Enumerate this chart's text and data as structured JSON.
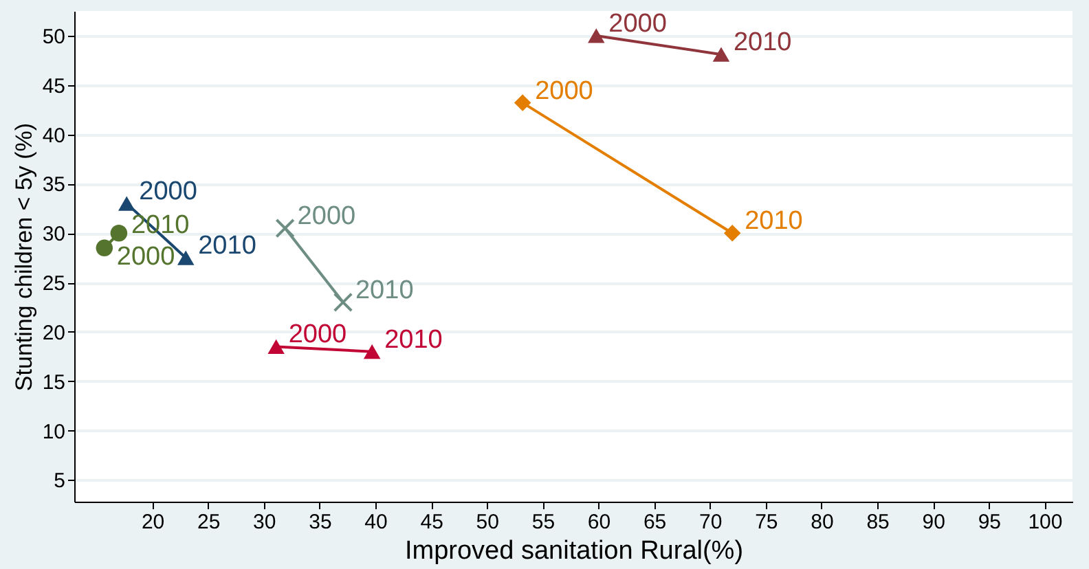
{
  "chart_data": {
    "type": "line",
    "xlabel": "Improved sanitation Rural(%)",
    "ylabel": "Stunting children < 5y (%)",
    "xlim": [
      13,
      102.5
    ],
    "xticks": [
      20,
      25,
      30,
      35,
      40,
      45,
      50,
      55,
      60,
      65,
      70,
      75,
      80,
      85,
      90,
      95,
      100
    ],
    "ylim": [
      2.8,
      52.5
    ],
    "yticks": [
      5,
      10,
      15,
      20,
      25,
      30,
      35,
      40,
      45,
      50
    ],
    "grid": "y",
    "series": [
      {
        "color": "#1a476f",
        "marker": "triangle",
        "x": [
          17.7,
          23
        ],
        "values": [
          33,
          27.5
        ]
      },
      {
        "color": "#55752f",
        "marker": "circle",
        "x": [
          15.7,
          17
        ],
        "values": [
          28.5,
          30
        ]
      },
      {
        "color": "#6e8e84",
        "marker": "cross",
        "x": [
          31.9,
          37.1
        ],
        "values": [
          30.5,
          23
        ]
      },
      {
        "color": "#c10534",
        "marker": "triangle",
        "x": [
          31.1,
          39.7
        ],
        "values": [
          18.5,
          18
        ]
      },
      {
        "color": "#90353b",
        "marker": "triangle",
        "x": [
          59.8,
          71
        ],
        "values": [
          50,
          48.1
        ]
      },
      {
        "color": "#e37e00",
        "marker": "diamond",
        "x": [
          53.2,
          72
        ],
        "values": [
          43.2,
          30
        ]
      }
    ],
    "annotations": [
      {
        "text": "2000",
        "x": 17.7,
        "y": 33
      },
      {
        "text": "2010",
        "x": 23,
        "y": 27.5
      },
      {
        "text": "2000",
        "x": 15.7,
        "y": 28.5
      },
      {
        "text": "2010",
        "x": 17,
        "y": 30
      },
      {
        "text": "2000",
        "x": 31.9,
        "y": 30.5
      },
      {
        "text": "2010",
        "x": 37.1,
        "y": 23
      },
      {
        "text": "2000",
        "x": 31.1,
        "y": 18.5
      },
      {
        "text": "2010",
        "x": 39.7,
        "y": 18
      },
      {
        "text": "2000",
        "x": 59.8,
        "y": 50
      },
      {
        "text": "2010",
        "x": 71,
        "y": 48.1
      },
      {
        "text": "2000",
        "x": 53.2,
        "y": 43.2
      },
      {
        "text": "2010",
        "x": 72,
        "y": 30
      }
    ]
  }
}
